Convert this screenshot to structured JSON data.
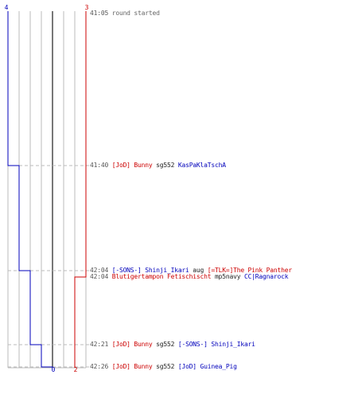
{
  "colors": {
    "team_a": "#0000bb",
    "team_b": "#cc0000",
    "grid": "#bbbbbb",
    "center": "#777777"
  },
  "axis": {
    "team_a_start": "4",
    "team_b_start": "3",
    "team_a_end": "0",
    "team_b_end": "2"
  },
  "events": [
    {
      "time": "41:05",
      "text": "round started"
    },
    {
      "time": "41:40",
      "killer": "[JoD] Bunny",
      "weapon": "sg552",
      "victim": "KasPaKlaTschA"
    },
    {
      "time": "42:04",
      "killer": "[-SONS-] Shinji_Ikari",
      "weapon": "aug",
      "victim": "[=TLK=]The Pink Panther"
    },
    {
      "time": "42:04",
      "killer": "Blutigertampon Fetischischt",
      "weapon": "mp5navy",
      "victim": "CC|Ragnarock"
    },
    {
      "time": "42:21",
      "killer": "[JoD] Bunny",
      "weapon": "sg552",
      "victim": "[-SONS-] Shinji_Ikari"
    },
    {
      "time": "42:26",
      "killer": "[JoD] Bunny",
      "weapon": "sg552",
      "victim": "[JoD] Guinea_Pig"
    }
  ],
  "chart_data": {
    "type": "line",
    "x": [
      "41:05",
      "41:40",
      "42:04",
      "42:04",
      "42:21",
      "42:26"
    ],
    "series": [
      {
        "values": [
          4,
          3,
          2,
          2,
          1,
          0
        ]
      },
      {
        "values": [
          3,
          3,
          3,
          2,
          2,
          2
        ]
      }
    ],
    "ylim": [
      0,
      4
    ]
  }
}
